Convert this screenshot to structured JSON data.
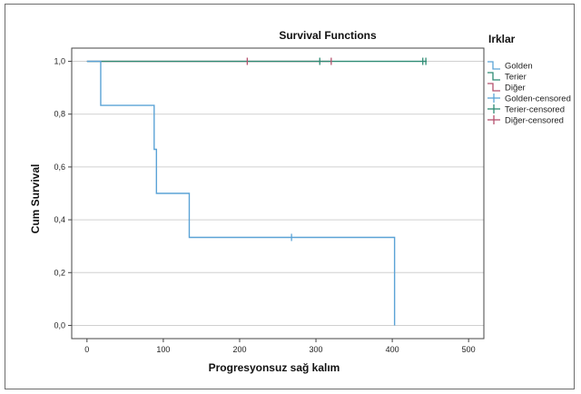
{
  "chart_data": {
    "type": "line",
    "step": true,
    "title": "Survival Functions",
    "xlabel": "Progresyonsuz sağ kalım",
    "ylabel": "Cum Survival",
    "xlim": [
      -20,
      520
    ],
    "ylim": [
      -0.05,
      1.05
    ],
    "x_ticks": [
      0,
      100,
      200,
      300,
      400,
      500
    ],
    "y_ticks": [
      0.0,
      0.2,
      0.4,
      0.6,
      0.8,
      1.0
    ],
    "x_tick_labels": [
      "0",
      "100",
      "200",
      "300",
      "400",
      "500"
    ],
    "y_tick_labels": [
      "0,0",
      "0,2",
      "0,4",
      "0,6",
      "0,8",
      "1,0"
    ],
    "grid": "horizontal",
    "legend": {
      "title": "Irklar",
      "placement": "right",
      "entries": [
        "Golden",
        "Terier",
        "Diğer",
        "Golden-censored",
        "Terier-censored",
        "Diğer-censored"
      ]
    },
    "series": [
      {
        "name": "Golden",
        "color": "#5ba3d6",
        "x": [
          0,
          18,
          18,
          88,
          88,
          91,
          91,
          134,
          134,
          403,
          403
        ],
        "y": [
          1.0,
          1.0,
          0.8333,
          0.8333,
          0.6667,
          0.6667,
          0.5,
          0.5,
          0.3333,
          0.3333,
          0.0
        ]
      },
      {
        "name": "Terier",
        "color": "#2e8b74",
        "x": [
          0,
          445
        ],
        "y": [
          1.0,
          1.0
        ]
      },
      {
        "name": "Diğer",
        "color": "#b5526e",
        "x": [
          0,
          320
        ],
        "y": [
          1.0,
          1.0
        ]
      }
    ],
    "censored": [
      {
        "name": "Golden-censored",
        "color": "#5ba3d6",
        "x": [
          268
        ],
        "y": [
          0.3333
        ]
      },
      {
        "name": "Terier-censored",
        "color": "#2e8b74",
        "x": [
          305,
          440,
          444
        ],
        "y": [
          1.0,
          1.0,
          1.0
        ]
      },
      {
        "name": "Diğer-censored",
        "color": "#b5526e",
        "x": [
          210,
          320
        ],
        "y": [
          1.0,
          1.0
        ]
      }
    ]
  }
}
